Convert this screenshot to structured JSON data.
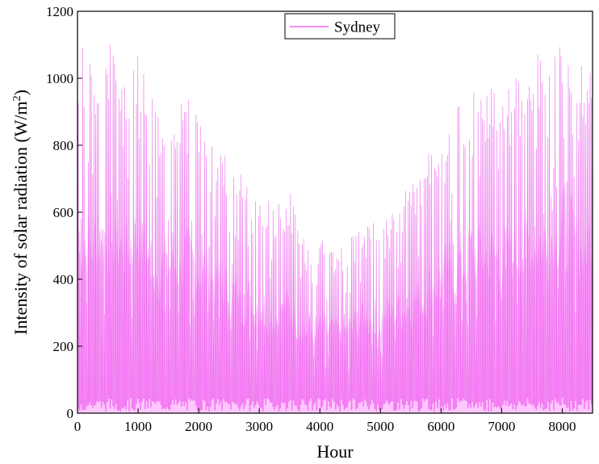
{
  "chart_data": {
    "type": "line",
    "title": "",
    "xlabel": "Hour",
    "ylabel_main": "Intensity of solar radiation (W/m",
    "ylabel_sup": "2",
    "ylabel_close": ")",
    "xlim": [
      0,
      8500
    ],
    "ylim": [
      0,
      1200
    ],
    "x_ticks": [
      0,
      1000,
      2000,
      3000,
      4000,
      5000,
      6000,
      7000,
      8000
    ],
    "x_tick_labels": [
      "0",
      "1000",
      "2000",
      "3000",
      "4000",
      "5000",
      "6000",
      "7000",
      "8000"
    ],
    "y_ticks": [
      0,
      200,
      400,
      600,
      800,
      1000,
      1200
    ],
    "y_tick_labels": [
      "0",
      "200",
      "400",
      "600",
      "800",
      "1000",
      "1200"
    ],
    "grid": false,
    "legend_position": "top-center",
    "series": [
      {
        "name": "Sydney",
        "color": "#ff99ff",
        "stroke_color": "#ee66ee",
        "resolution": "hourly, 24 h/day, daily peak envelope sampled per day",
        "envelope_x": [
          0,
          250,
          500,
          750,
          1000,
          1250,
          1500,
          1750,
          2000,
          2250,
          2500,
          2750,
          3000,
          3250,
          3500,
          3750,
          4000,
          4250,
          4500,
          4750,
          5000,
          5250,
          5500,
          5750,
          6000,
          6250,
          6500,
          6750,
          7000,
          7250,
          7500,
          7750,
          8000,
          8250,
          8500
        ],
        "envelope_y": [
          1130,
          1050,
          1130,
          1030,
          1130,
          930,
          920,
          950,
          920,
          840,
          750,
          715,
          680,
          610,
          670,
          520,
          520,
          500,
          520,
          610,
          590,
          640,
          690,
          760,
          860,
          910,
          1010,
          985,
          970,
          1040,
          1075,
          1080,
          1200,
          1050,
          1030
        ]
      }
    ]
  }
}
